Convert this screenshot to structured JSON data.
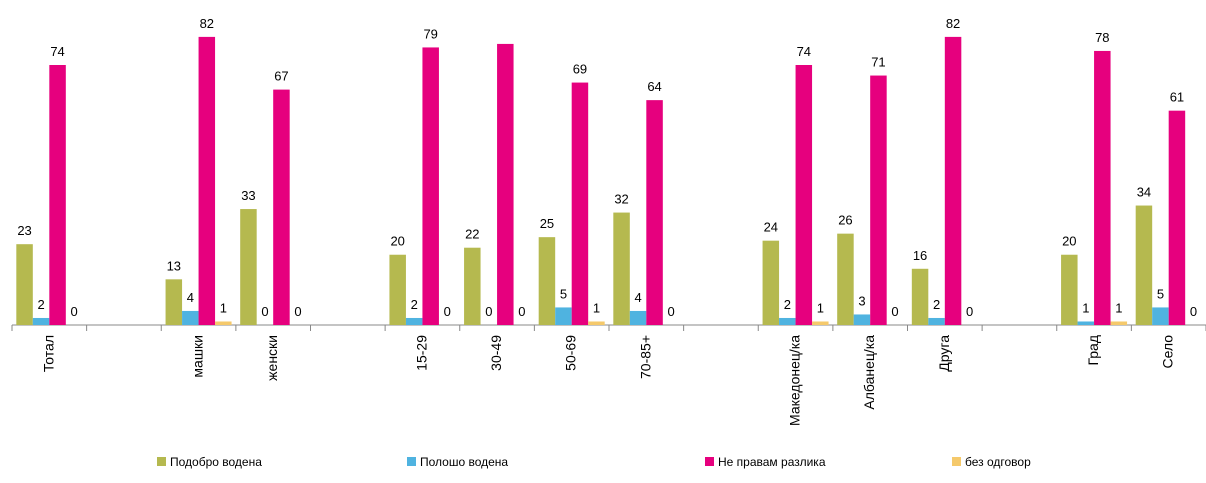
{
  "chart_data": {
    "type": "bar",
    "categories": [
      "Тотал",
      null,
      "машки",
      "женски",
      null,
      "15-29",
      "30-49",
      "50-69",
      "70-85+",
      null,
      "Македонец/ка",
      "Албанец/ка",
      "Друга",
      null,
      "Град",
      "Село"
    ],
    "series": [
      {
        "name": "Подобро водена",
        "color": "#b5b94f",
        "values": [
          23,
          null,
          13,
          33,
          null,
          20,
          22,
          25,
          32,
          null,
          24,
          26,
          16,
          null,
          20,
          34
        ]
      },
      {
        "name": "Полошо водена",
        "color": "#4fb3e0",
        "values": [
          2,
          null,
          4,
          0,
          null,
          2,
          0,
          5,
          4,
          null,
          2,
          3,
          2,
          null,
          1,
          5
        ]
      },
      {
        "name": "Не правам разлика",
        "color": "#e6007e",
        "values": [
          74,
          null,
          82,
          67,
          null,
          79,
          80,
          69,
          64,
          null,
          74,
          71,
          82,
          null,
          78,
          61
        ],
        "value_labels": [
          "74",
          null,
          "82",
          "67",
          null,
          "79",
          null,
          "69",
          "64",
          null,
          "74",
          "71",
          "82",
          null,
          "78",
          "61"
        ]
      },
      {
        "name": "без одговор",
        "color": "#f5c96b",
        "values": [
          0,
          null,
          1,
          0,
          null,
          0,
          0,
          1,
          0,
          null,
          1,
          0,
          0,
          null,
          1,
          0
        ]
      }
    ],
    "ylim": [
      0,
      92.5
    ]
  }
}
